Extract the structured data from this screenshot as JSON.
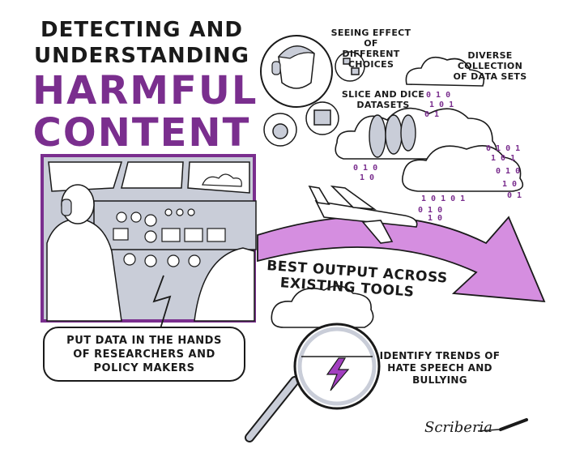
{
  "title": {
    "line1": "DETECTING AND",
    "line2": "UNDERSTANDING",
    "line3": "HARMFUL",
    "line4": "CONTENT"
  },
  "notes": {
    "seeing_effect_1": "SEEING EFFECT OF",
    "seeing_effect_2": "DIFFERENT CHOICES",
    "diverse_1": "DIVERSE COLLECTION",
    "diverse_2": "OF DATA SETS",
    "slice_1": "SLICE AND DICE",
    "slice_2": "DATASETS",
    "identify_1": "IDENTIFY TRENDS OF",
    "identify_2": "HATE SPEECH AND",
    "identify_3": "BULLYING"
  },
  "callout": {
    "line1": "PUT DATA IN THE HANDS",
    "line2": "OF RESEARCHERS AND",
    "line3": "POLICY MAKERS"
  },
  "arrow_label": {
    "line1": "BEST OUTPUT ACROSS",
    "line2": "EXISTING TOOLS"
  },
  "signature": "Scriberia",
  "colors": {
    "purple": "#7a2e8e",
    "light_purple": "#d58ee0",
    "grey_blue": "#c9cdd8",
    "ink": "#1a1a1a"
  },
  "icons": [
    "pilot-icon",
    "airplane-icon",
    "cloud-icon",
    "magnifier-icon",
    "lightning-icon",
    "gauge-icon",
    "pen-icon"
  ]
}
